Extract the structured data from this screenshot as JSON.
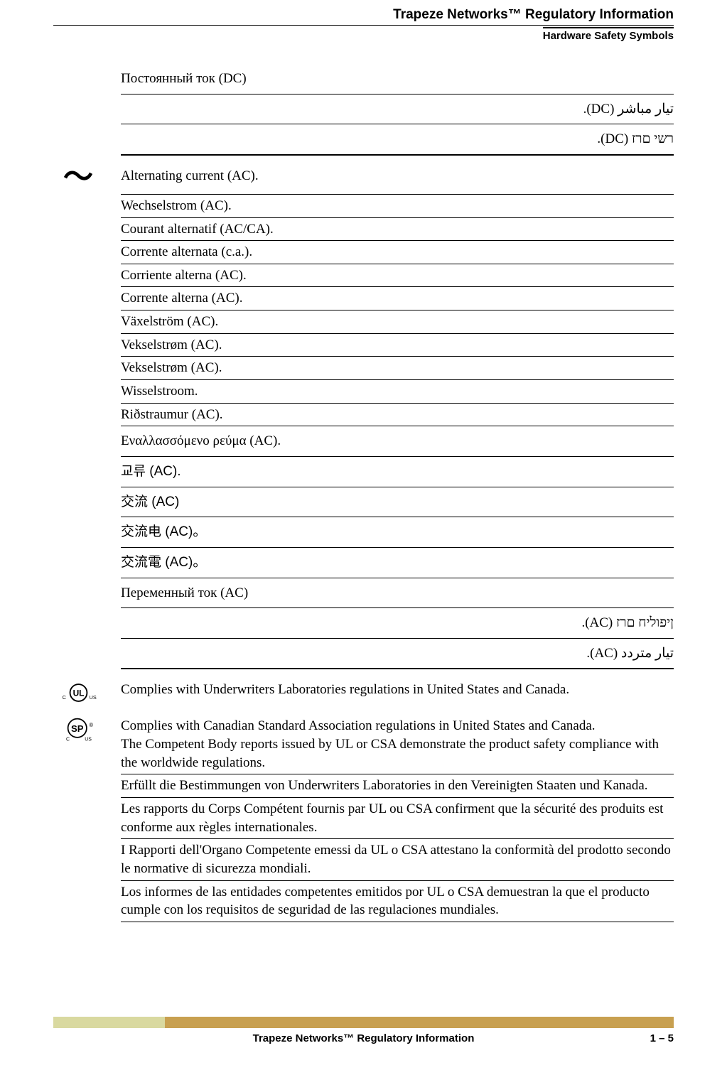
{
  "header": {
    "title": "Trapeze Networks™ Regulatory Information",
    "subtitle": "Hardware Safety Symbols"
  },
  "dc_section": {
    "rows": [
      {
        "text": "Постоянный ток (DC)",
        "rtl": false,
        "tall": true
      },
      {
        "text": "تيار مباشر (DC).",
        "rtl": true,
        "tall": true
      },
      {
        "text": "רשי םרז (DC).",
        "rtl": true,
        "tall": true,
        "heavy": true
      }
    ]
  },
  "ac_section": {
    "intro": "Alternating current (AC).",
    "rows": [
      {
        "text": "Wechselstrom (AC).",
        "rtl": false
      },
      {
        "text": "Courant alternatif (AC/CA).",
        "rtl": false
      },
      {
        "text": "Corrente alternata (c.a.).",
        "rtl": false
      },
      {
        "text": "Corriente alterna (AC).",
        "rtl": false
      },
      {
        "text": "Corrente alterna (AC).",
        "rtl": false
      },
      {
        "text": "Växelström (AC).",
        "rtl": false
      },
      {
        "text": "Vekselstrøm (AC).",
        "rtl": false
      },
      {
        "text": "Vekselstrøm (AC).",
        "rtl": false
      },
      {
        "text": "Wisselstroom.",
        "rtl": false
      },
      {
        "text": "Riðstraumur (AC).",
        "rtl": false
      },
      {
        "text": "Εναλλασσόμενο ρεύμα (AC).",
        "rtl": false,
        "tall": true
      },
      {
        "text": "교류 (AC).",
        "rtl": false,
        "tall": true,
        "cjk": true
      },
      {
        "text": "交流 (AC)",
        "rtl": false,
        "tall": true,
        "cjk": true
      },
      {
        "text": "交流电 (AC)。",
        "rtl": false,
        "tall": true,
        "cjk": true
      },
      {
        "text": "交流電 (AC)。",
        "rtl": false,
        "tall": true,
        "cjk": true
      },
      {
        "text": "Переменный ток (AC)",
        "rtl": false,
        "tall": true
      },
      {
        "text": "ןיפוליח םרז (AC).",
        "rtl": true,
        "tall": true
      },
      {
        "text": "تيار متردد (AC).",
        "rtl": true,
        "tall": true,
        "heavy": true
      }
    ]
  },
  "ul_section": {
    "intro": "Complies with Underwriters Laboratories regulations in United States and Canada."
  },
  "csa_section": {
    "rows": [
      {
        "text": "Complies with Canadian Standard Association regulations in United States and Canada.\nThe Competent Body reports issued by UL or CSA demonstrate the product safety compliance with the worldwide regulations."
      },
      {
        "text": "Erfüllt die Bestimmungen von Underwriters Laboratories in den Vereinigten Staaten und Kanada."
      },
      {
        "text": "Les rapports du Corps Compétent fournis par UL ou CSA confirment que la sécurité des produits est conforme aux règles internationales."
      },
      {
        "text": "I Rapporti dell'Organo Competente emessi da UL o CSA attestano la conformità del prodotto secondo le normative di sicurezza mondiali."
      },
      {
        "text": "Los informes de las entidades competentes emitidos por UL o CSA demuestran la que el producto cumple con los requisitos de seguridad de las regulaciones mundiales."
      }
    ]
  },
  "footer": {
    "title": "Trapeze Networks™ Regulatory Information",
    "page": "1 – 5"
  }
}
